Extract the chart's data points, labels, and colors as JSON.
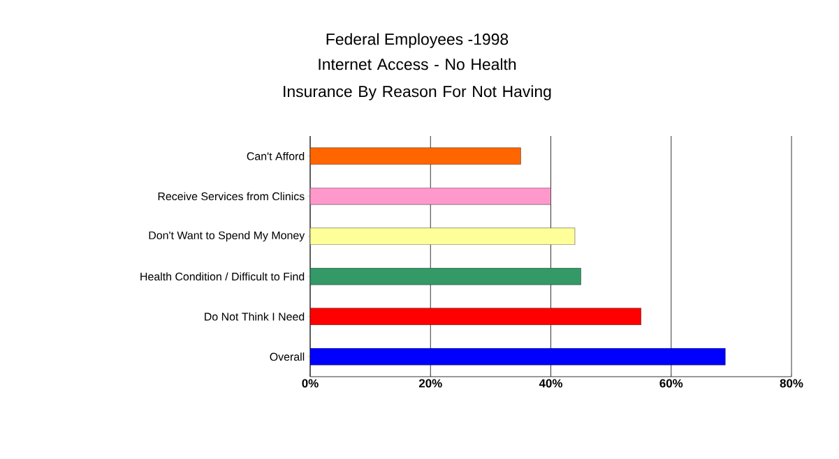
{
  "chart_data": {
    "type": "bar",
    "orientation": "horizontal",
    "title": "Federal Employees -1998",
    "subtitle": "Internet Access - No Health Insurance By Reason For Not Having",
    "categories": [
      "Can't Afford",
      "Receive Services from Clinics",
      "Don't Want to Spend My Money",
      "Health Condition / Difficult to Find",
      "Do Not Think I Need",
      "Overall"
    ],
    "values": [
      35,
      40,
      44,
      45,
      55,
      69
    ],
    "colors": [
      "#ff6600",
      "#ff99cc",
      "#ffff99",
      "#339966",
      "#ff0000",
      "#0000ff"
    ],
    "xlim": [
      0,
      80
    ],
    "xticks": [
      {
        "value": 0,
        "label": "0%"
      },
      {
        "value": 20,
        "label": "20%"
      },
      {
        "value": 40,
        "label": "40%"
      },
      {
        "value": 60,
        "label": "60%"
      },
      {
        "value": 80,
        "label": "80%"
      }
    ],
    "grid": "x"
  }
}
